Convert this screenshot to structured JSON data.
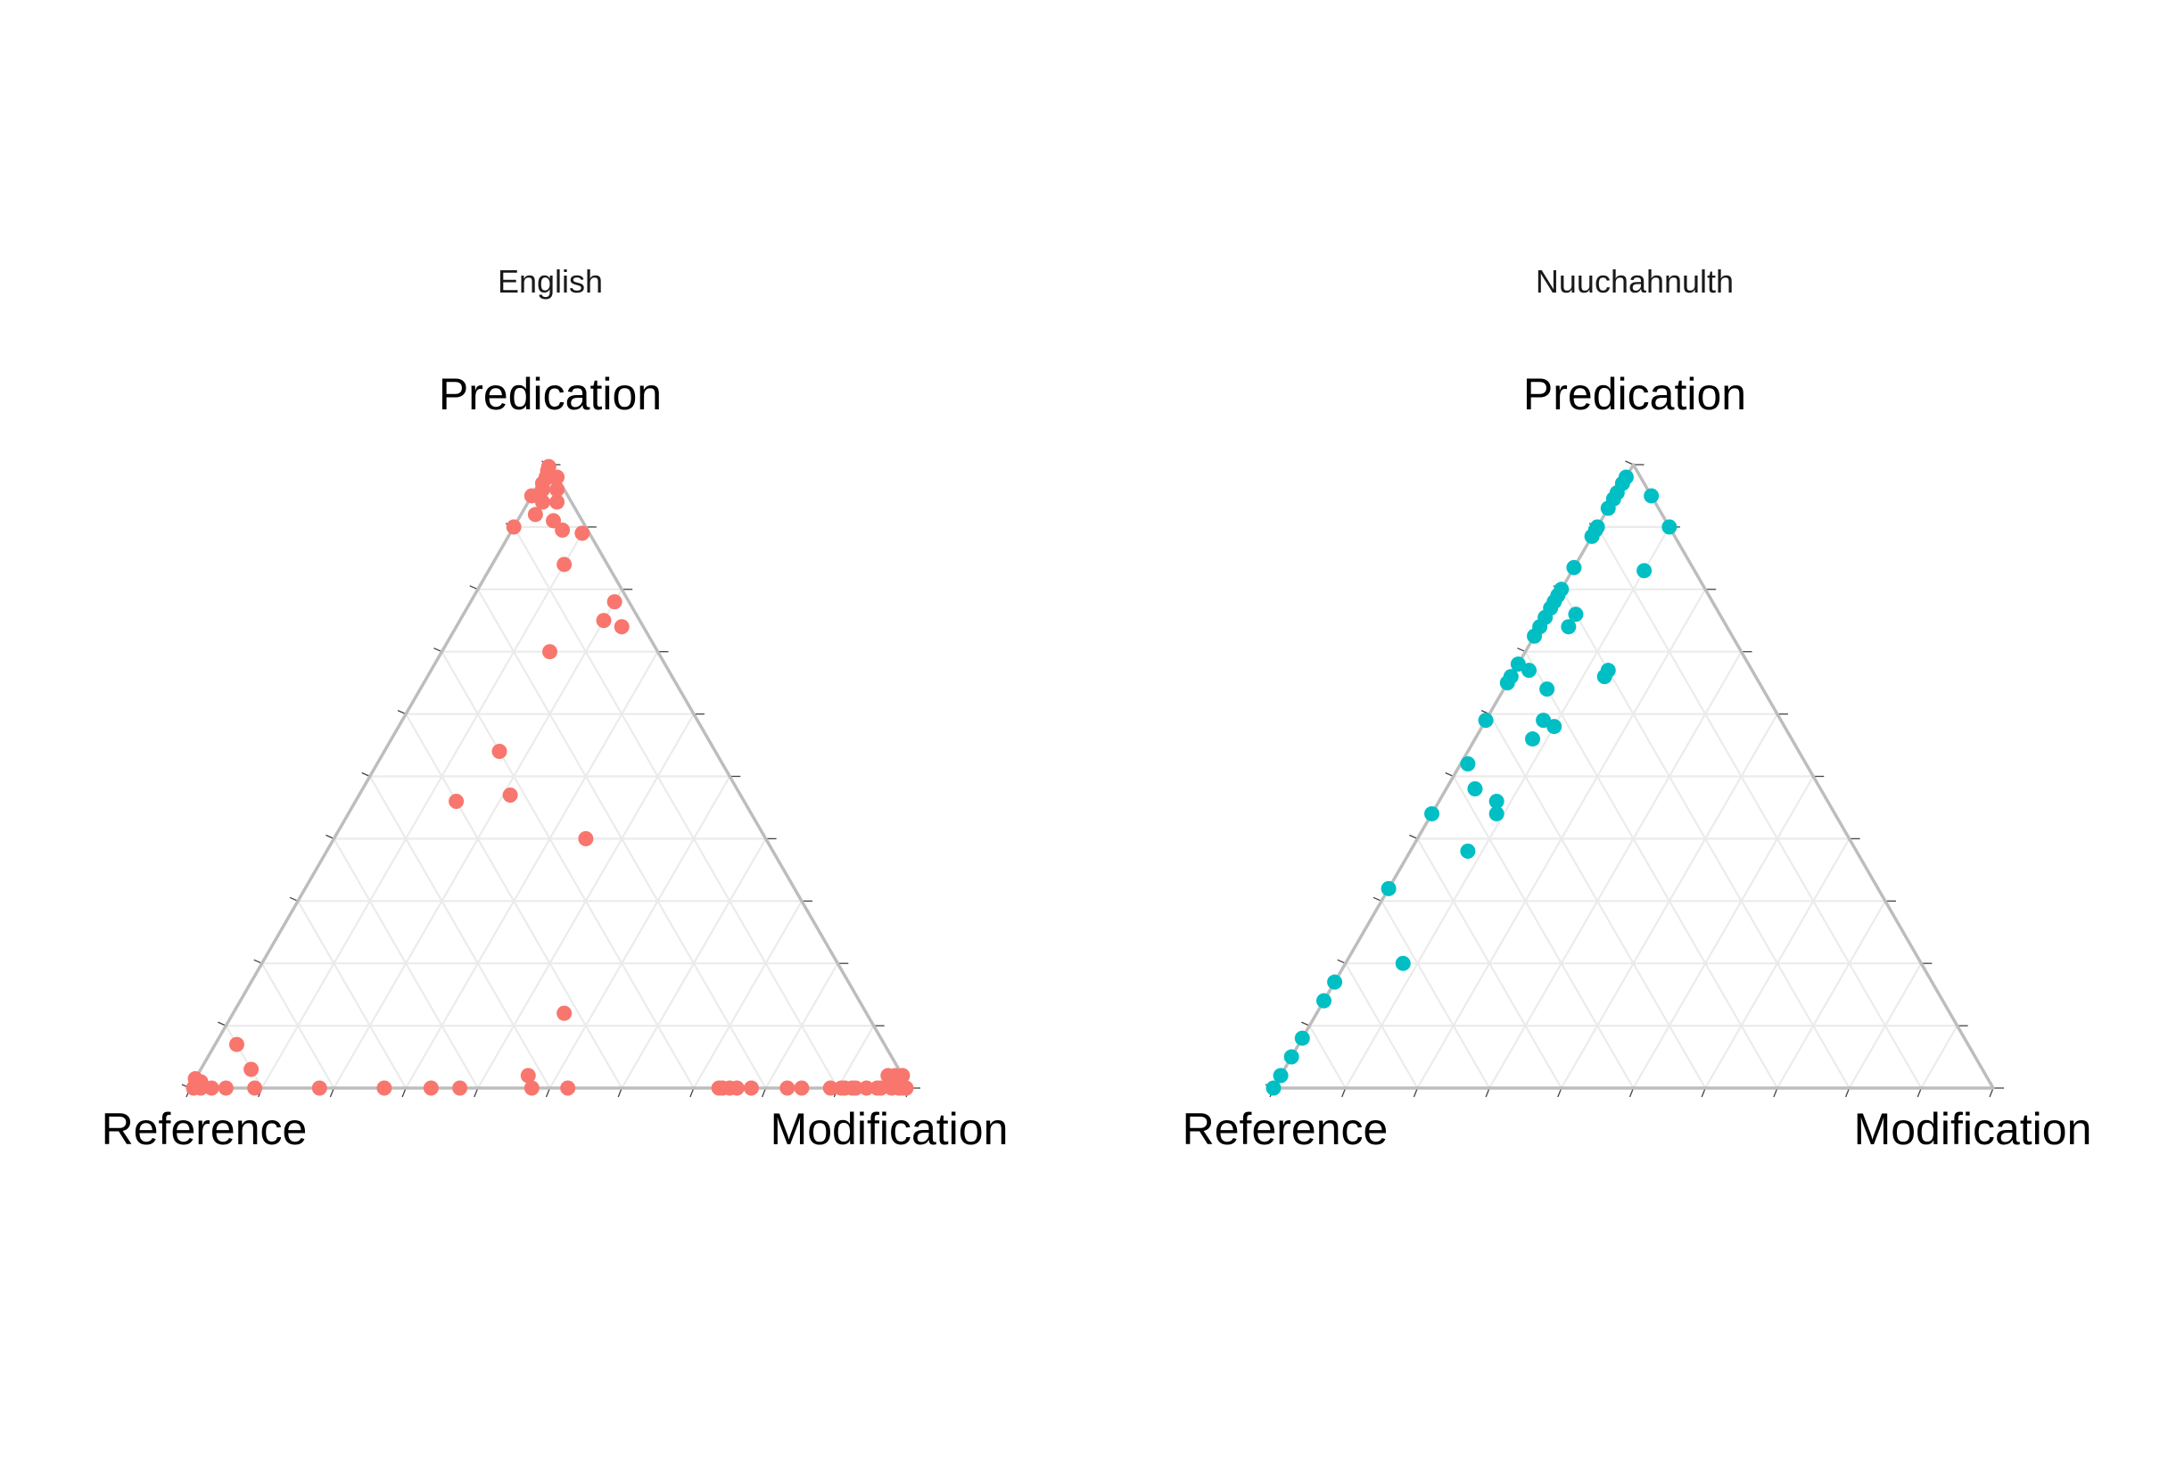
{
  "chart_data": [
    {
      "type": "scatter",
      "subtype": "ternary",
      "title": "English",
      "axes": {
        "top": "Predication",
        "left": "Reference",
        "right": "Modification"
      },
      "grid": true,
      "color": "#F8766D",
      "units": "fraction (Reference, Modification, Predication), sums to 1",
      "points": [
        [
          0.003,
          0.0,
          0.997
        ],
        [
          0.008,
          0.002,
          0.99
        ],
        [
          0.012,
          0.008,
          0.98
        ],
        [
          0.015,
          0.005,
          0.98
        ],
        [
          0.0,
          0.02,
          0.98
        ],
        [
          0.025,
          0.005,
          0.97
        ],
        [
          0.01,
          0.03,
          0.96
        ],
        [
          0.03,
          0.01,
          0.96
        ],
        [
          0.05,
          0.0,
          0.95
        ],
        [
          0.04,
          0.02,
          0.94
        ],
        [
          0.02,
          0.04,
          0.94
        ],
        [
          0.06,
          0.02,
          0.92
        ],
        [
          0.04,
          0.05,
          0.91
        ],
        [
          0.035,
          0.07,
          0.895
        ],
        [
          0.01,
          0.1,
          0.89
        ],
        [
          0.1,
          0.0,
          0.9
        ],
        [
          0.06,
          0.1,
          0.84
        ],
        [
          0.02,
          0.2,
          0.78
        ],
        [
          0.05,
          0.2,
          0.75
        ],
        [
          0.03,
          0.23,
          0.74
        ],
        [
          0.15,
          0.15,
          0.7
        ],
        [
          0.3,
          0.16,
          0.54
        ],
        [
          0.32,
          0.21,
          0.47
        ],
        [
          0.4,
          0.14,
          0.46
        ],
        [
          0.25,
          0.35,
          0.4
        ],
        [
          0.42,
          0.46,
          0.12
        ],
        [
          0.9,
          0.03,
          0.07
        ],
        [
          0.9,
          0.07,
          0.03
        ],
        [
          0.98,
          0.01,
          0.01
        ],
        [
          0.985,
          0.0,
          0.015
        ],
        [
          0.99,
          0.005,
          0.005
        ],
        [
          0.995,
          0.005,
          0.0
        ],
        [
          0.985,
          0.015,
          0.0
        ],
        [
          0.97,
          0.03,
          0.0
        ],
        [
          0.95,
          0.05,
          0.0
        ],
        [
          0.91,
          0.09,
          0.0
        ],
        [
          0.82,
          0.18,
          0.0
        ],
        [
          0.73,
          0.27,
          0.0
        ],
        [
          0.665,
          0.335,
          0.0
        ],
        [
          0.625,
          0.375,
          0.0
        ],
        [
          0.525,
          0.475,
          0.0
        ],
        [
          0.52,
          0.46,
          0.02
        ],
        [
          0.475,
          0.525,
          0.0
        ],
        [
          0.265,
          0.735,
          0.0
        ],
        [
          0.26,
          0.74,
          0.0
        ],
        [
          0.25,
          0.75,
          0.0
        ],
        [
          0.24,
          0.76,
          0.0
        ],
        [
          0.22,
          0.78,
          0.0
        ],
        [
          0.17,
          0.83,
          0.0
        ],
        [
          0.15,
          0.85,
          0.0
        ],
        [
          0.11,
          0.89,
          0.0
        ],
        [
          0.095,
          0.905,
          0.0
        ],
        [
          0.09,
          0.91,
          0.0
        ],
        [
          0.08,
          0.92,
          0.0
        ],
        [
          0.075,
          0.925,
          0.0
        ],
        [
          0.06,
          0.94,
          0.0
        ],
        [
          0.045,
          0.955,
          0.0
        ],
        [
          0.04,
          0.96,
          0.0
        ],
        [
          0.025,
          0.975,
          0.0
        ],
        [
          0.015,
          0.985,
          0.0
        ],
        [
          0.01,
          0.99,
          0.0
        ],
        [
          0.005,
          0.995,
          0.0
        ],
        [
          0.02,
          0.96,
          0.02
        ],
        [
          0.01,
          0.97,
          0.02
        ],
        [
          0.0,
          0.98,
          0.02
        ],
        [
          0.01,
          0.975,
          0.015
        ]
      ]
    },
    {
      "type": "scatter",
      "subtype": "ternary",
      "title": "Nuuchahnulth",
      "axes": {
        "top": "Predication",
        "left": "Reference",
        "right": "Modification"
      },
      "grid": true,
      "color": "#00BFC4",
      "units": "fraction (Reference, Modification, Predication), sums to 1",
      "points": [
        [
          0.02,
          0.0,
          0.98
        ],
        [
          0.03,
          0.0,
          0.97
        ],
        [
          0.045,
          0.0,
          0.955
        ],
        [
          0.055,
          0.0,
          0.945
        ],
        [
          0.0,
          0.05,
          0.95
        ],
        [
          0.07,
          0.0,
          0.93
        ],
        [
          0.0,
          0.1,
          0.9
        ],
        [
          0.1,
          0.0,
          0.9
        ],
        [
          0.105,
          0.0,
          0.895
        ],
        [
          0.115,
          0.0,
          0.885
        ],
        [
          0.165,
          0.0,
          0.835
        ],
        [
          0.2,
          0.0,
          0.8
        ],
        [
          0.21,
          0.0,
          0.79
        ],
        [
          0.22,
          0.0,
          0.78
        ],
        [
          0.23,
          0.0,
          0.77
        ],
        [
          0.245,
          0.0,
          0.755
        ],
        [
          0.26,
          0.0,
          0.74
        ],
        [
          0.275,
          0.0,
          0.725
        ],
        [
          0.32,
          0.0,
          0.68
        ],
        [
          0.34,
          0.0,
          0.66
        ],
        [
          0.35,
          0.0,
          0.65
        ],
        [
          0.2,
          0.04,
          0.76
        ],
        [
          0.22,
          0.04,
          0.74
        ],
        [
          0.07,
          0.1,
          0.83
        ],
        [
          0.2,
          0.13,
          0.67
        ],
        [
          0.21,
          0.13,
          0.66
        ],
        [
          0.31,
          0.02,
          0.67
        ],
        [
          0.3,
          0.06,
          0.64
        ],
        [
          0.32,
          0.1,
          0.58
        ],
        [
          0.33,
          0.08,
          0.59
        ],
        [
          0.36,
          0.08,
          0.56
        ],
        [
          0.41,
          0.0,
          0.59
        ],
        [
          0.47,
          0.01,
          0.52
        ],
        [
          0.48,
          0.04,
          0.48
        ],
        [
          0.46,
          0.08,
          0.46
        ],
        [
          0.47,
          0.09,
          0.44
        ],
        [
          0.56,
          0.0,
          0.44
        ],
        [
          0.54,
          0.08,
          0.38
        ],
        [
          0.68,
          0.0,
          0.32
        ],
        [
          0.72,
          0.08,
          0.2
        ],
        [
          0.83,
          0.0,
          0.17
        ],
        [
          0.86,
          0.0,
          0.14
        ],
        [
          0.92,
          0.0,
          0.08
        ],
        [
          0.95,
          0.0,
          0.05
        ],
        [
          0.98,
          0.0,
          0.02
        ],
        [
          1.0,
          0.0,
          0.0
        ]
      ]
    }
  ]
}
